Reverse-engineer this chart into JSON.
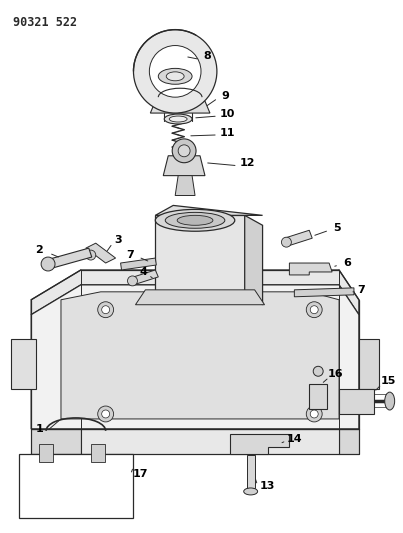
{
  "title": "90321 522",
  "bg_color": "#ffffff",
  "line_color": "#2a2a2a",
  "label_color": "#000000",
  "fig_width": 4.03,
  "fig_height": 5.33,
  "dpi": 100
}
